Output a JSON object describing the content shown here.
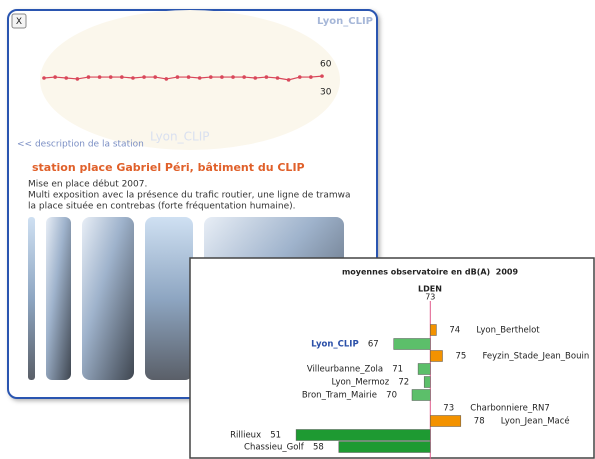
{
  "popup": {
    "close": "X",
    "station": "Lyon_CLIP",
    "sparkline": {
      "values": [
        45,
        46,
        45,
        44,
        46,
        46,
        46,
        46,
        45,
        46,
        46,
        44,
        46,
        46,
        45,
        46,
        46,
        46,
        46,
        45,
        46,
        45,
        43,
        46,
        46,
        47
      ],
      "ylim": [
        30,
        60
      ],
      "yticks": [
        30,
        60
      ],
      "color": "#d9475a"
    },
    "link": "<< description de la station",
    "watermark": "Lyon_CLIP",
    "title": "station place Gabriel Péri, bâtiment du CLIP",
    "description": [
      "Mise en place début 2007.",
      "Multi exposition avec la présence du trafic routier, une ligne de tramwa",
      "la place située en contrebas (forte fréquentation humaine)."
    ]
  },
  "chart_data": {
    "type": "bar",
    "orientation": "horizontal",
    "title": "moyennes observatoire en dB(A)  2009",
    "reference": {
      "label": "LDEN",
      "value": 73,
      "color": "#e05a8a"
    },
    "categories": [
      "Lyon_Berthelot",
      "Lyon_CLIP",
      "Feyzin_Stade_Jean_Bouin",
      "Villeurbanne_Zola",
      "Lyon_Mermoz",
      "Bron_Tram_Mairie",
      "Charbonniere_RN7",
      "Lyon_Jean_Macé",
      "Rillieux",
      "Chassieu_Golf"
    ],
    "values": [
      74,
      67,
      75,
      71,
      72,
      70,
      73,
      78,
      51,
      58
    ],
    "colors": [
      "#f39200",
      "#5cbf6a",
      "#f39200",
      "#5cbf6a",
      "#5cbf6a",
      "#5cbf6a",
      "#f39200",
      "#f39200",
      "#1e9a32",
      "#1e9a32"
    ],
    "highlighted_category": 1,
    "xlim": [
      50,
      80
    ]
  }
}
